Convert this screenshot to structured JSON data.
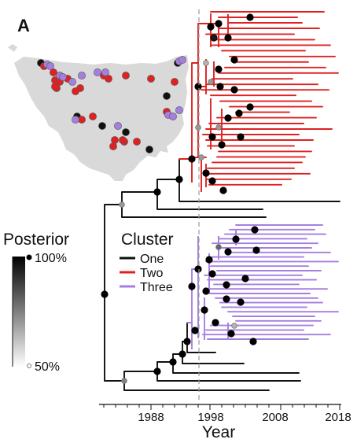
{
  "panel_label": "A",
  "legend": {
    "posterior_title": "Posterior",
    "posterior_high": "100%",
    "posterior_low": "50%",
    "cluster_title": "Cluster",
    "clusters": [
      {
        "label": "One",
        "color": "#111111"
      },
      {
        "label": "Two",
        "color": "#e02121"
      },
      {
        "label": "Three",
        "color": "#a57fe0"
      }
    ]
  },
  "axis": {
    "title": "Year",
    "ticks": [
      "1988",
      "1998",
      "2008",
      "2018"
    ]
  },
  "colors": {
    "cluster_one": "#111111",
    "cluster_two": "#e02121",
    "cluster_three": "#a57fe0",
    "map_land": "#d9d9d9",
    "dashed_line": "#999999"
  },
  "map_sites": {
    "cluster_one_count": 7,
    "cluster_two_count": 22,
    "cluster_three_count": 15
  }
}
